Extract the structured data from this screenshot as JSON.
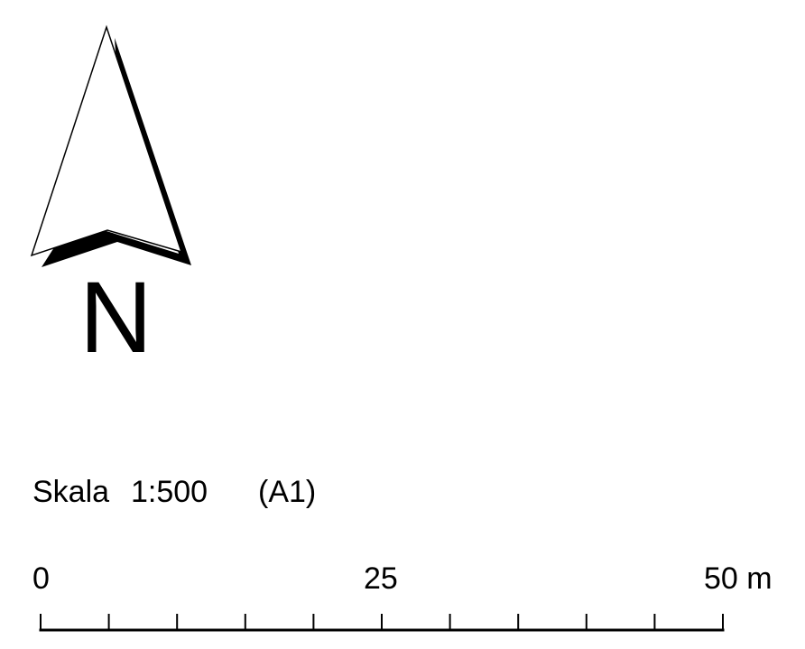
{
  "north_arrow": {
    "icon": "north-arrow-icon",
    "letter": "N"
  },
  "scale": {
    "label": "Skala",
    "ratio": "1:500",
    "paper_size": "(A1)"
  },
  "scale_bar": {
    "start_label": "0",
    "mid_label": "25",
    "end_label": "50 m",
    "total_length": 50,
    "unit": "m",
    "divisions": 10
  },
  "colors": {
    "ink": "#000000",
    "background": "#ffffff"
  }
}
